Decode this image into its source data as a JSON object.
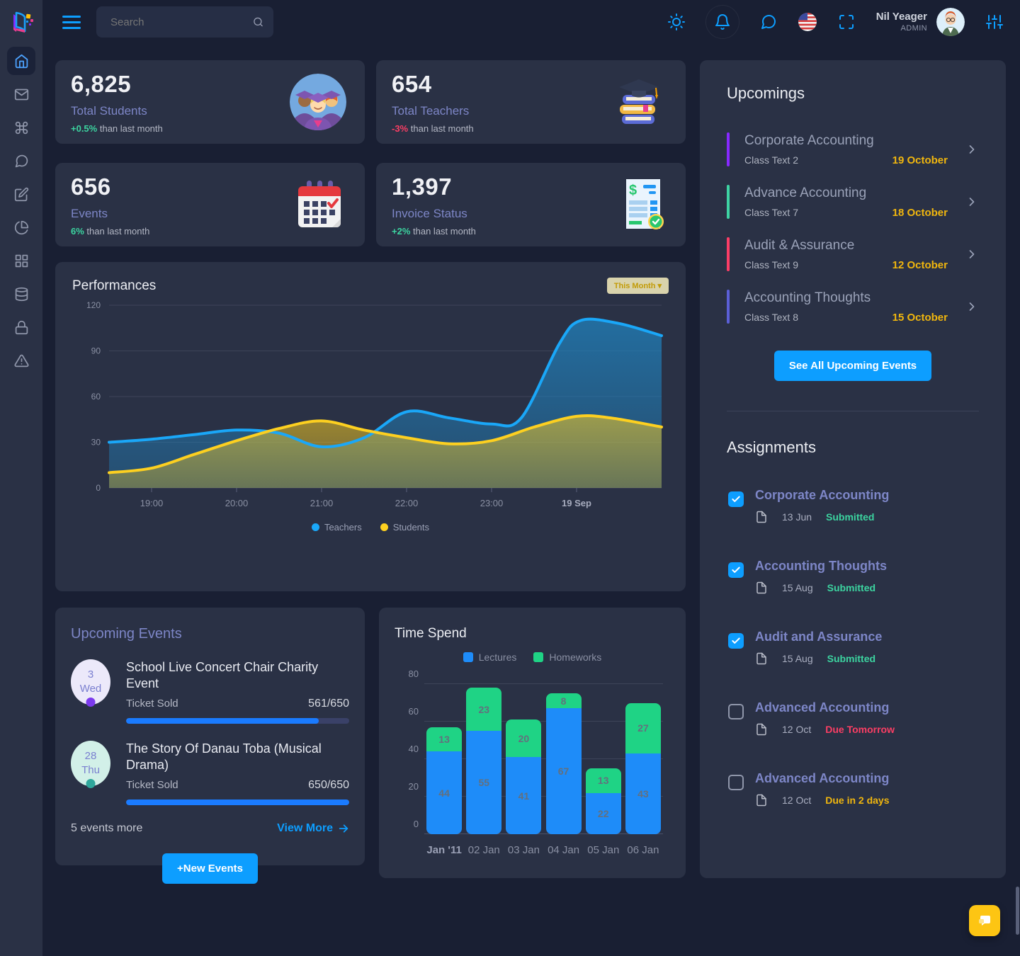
{
  "topbar": {
    "search_placeholder": "Search",
    "user": {
      "name": "Nil Yeager",
      "role": "ADMIN"
    },
    "icons": [
      "sun-icon",
      "bell-icon",
      "chat-icon",
      "us-flag-icon",
      "fullscreen-icon",
      "sliders-icon"
    ]
  },
  "sidebar": {
    "icons": [
      "home",
      "mail",
      "command",
      "chat",
      "edit",
      "pie-chart",
      "grid",
      "database",
      "lock",
      "alert-triangle"
    ],
    "active": "home"
  },
  "stats": [
    {
      "value": "6,825",
      "label": "Total Students",
      "delta": "+0.5%",
      "delta_color": "#3cd4a0",
      "suffix": "than last month",
      "illustration": "graduates"
    },
    {
      "value": "654",
      "label": "Total Teachers",
      "delta": "-3%",
      "delta_color": "#fb3e64",
      "suffix": "than last month",
      "illustration": "books-cap"
    },
    {
      "value": "656",
      "label": "Events",
      "delta": "6%",
      "delta_color": "#3cd4a0",
      "suffix": "than last month",
      "illustration": "calendar"
    },
    {
      "value": "1,397",
      "label": "Invoice Status",
      "delta": "+2%",
      "delta_color": "#3cd4a0",
      "suffix": "than last month",
      "illustration": "invoice-check"
    }
  ],
  "performances": {
    "title": "Performances",
    "filter_label": "This Month"
  },
  "upcomings": {
    "title": "Upcomings",
    "items": [
      {
        "title": "Corporate Accounting",
        "subtitle": "Class Text 2",
        "date": "19 October",
        "accent": "#8729ff"
      },
      {
        "title": "Advance Accounting",
        "subtitle": "Class Text 7",
        "date": "18 October",
        "accent": "#3ed3a3"
      },
      {
        "title": "Audit & Assurance",
        "subtitle": "Class Text 9",
        "date": "12 October",
        "accent": "#fb3d66"
      },
      {
        "title": "Accounting Thoughts",
        "subtitle": "Class Text 8",
        "date": "15 October",
        "accent": "#5b5fd6"
      }
    ],
    "see_all_label": "See All Upcoming Events"
  },
  "assignments": {
    "title": "Assignments",
    "items": [
      {
        "title": "Corporate Accounting",
        "date": "13 Jun",
        "status": "Submitted",
        "status_color": "#3cd4a0",
        "checked": true
      },
      {
        "title": "Accounting Thoughts",
        "date": "15 Aug",
        "status": "Submitted",
        "status_color": "#3cd4a0",
        "checked": true
      },
      {
        "title": "Audit and Assurance",
        "date": "15 Aug",
        "status": "Submitted",
        "status_color": "#3cd4a0",
        "checked": true
      },
      {
        "title": "Advanced Accounting",
        "date": "12 Oct",
        "status": "Due Tomorrow",
        "status_color": "#fb3e64",
        "checked": false
      },
      {
        "title": "Advanced Accounting",
        "date": "12 Oct",
        "status": "Due in 2 days",
        "status_color": "#f0b60e",
        "checked": false
      }
    ]
  },
  "events_panel": {
    "title": "Upcoming Events",
    "events": [
      {
        "day": "3",
        "weekday": "Wed",
        "title": "School Live Concert Chair Charity Event",
        "ticket_label": "Ticket Sold",
        "sold": 561,
        "capacity": 650,
        "sold_display": "561/650",
        "badge_bg": "#ece9fa",
        "badge_color": "#7a7fd0",
        "dot_color": "#7c3aed"
      },
      {
        "day": "28",
        "weekday": "Thu",
        "title": "The Story Of Danau Toba (Musical Drama)",
        "ticket_label": "Ticket Sold",
        "sold": 650,
        "capacity": 650,
        "sold_display": "650/650",
        "badge_bg": "#d2f0e8",
        "badge_color": "#7a7fd0",
        "dot_color": "#2fa79b"
      }
    ],
    "more_label": "5 events more",
    "view_more_label": "View More",
    "new_events_label": "+New Events"
  },
  "chart_data": [
    {
      "type": "area",
      "title": "Performances",
      "x_tick_labels": [
        "19:00",
        "20:00",
        "21:00",
        "22:00",
        "23:00",
        "19 Sep"
      ],
      "x_domain": [
        -0.5,
        6
      ],
      "y_ticks": [
        0,
        30,
        60,
        90,
        120
      ],
      "ylim": [
        0,
        120
      ],
      "grid": true,
      "legend_position": "bottom",
      "series": [
        {
          "name": "Teachers",
          "color": "#1aa7f8",
          "fill_from": "rgba(32,130,190,0.75)",
          "fill_to": "rgba(32,130,190,0.35)",
          "points": [
            [
              -0.5,
              30
            ],
            [
              0,
              32
            ],
            [
              0.5,
              35
            ],
            [
              1,
              38
            ],
            [
              1.5,
              36
            ],
            [
              2,
              27
            ],
            [
              2.5,
              33
            ],
            [
              3,
              50
            ],
            [
              3.5,
              46
            ],
            [
              4,
              42
            ],
            [
              4.35,
              46
            ],
            [
              4.8,
              95
            ],
            [
              5.05,
              110
            ],
            [
              5.5,
              108
            ],
            [
              6,
              100
            ]
          ]
        },
        {
          "name": "Students",
          "color": "#fdd020",
          "fill_from": "rgba(253,208,32,0.55)",
          "fill_to": "rgba(253,208,32,0.30)",
          "points": [
            [
              -0.5,
              10
            ],
            [
              0,
              13
            ],
            [
              0.5,
              22
            ],
            [
              1,
              31
            ],
            [
              1.5,
              39
            ],
            [
              2,
              44
            ],
            [
              2.5,
              38
            ],
            [
              3,
              33
            ],
            [
              3.5,
              29
            ],
            [
              4,
              31
            ],
            [
              4.5,
              40
            ],
            [
              5,
              47
            ],
            [
              5.4,
              46
            ],
            [
              6,
              40
            ]
          ]
        }
      ]
    },
    {
      "type": "stacked-bar",
      "title": "Time Spend",
      "categories": [
        "Jan '11",
        "02 Jan",
        "03 Jan",
        "04 Jan",
        "05 Jan",
        "06 Jan"
      ],
      "y_ticks": [
        0,
        20,
        40,
        60,
        80
      ],
      "ylim": [
        0,
        80
      ],
      "grid": true,
      "legend_position": "top",
      "series": [
        {
          "name": "Lectures",
          "color": "#1e8cf9",
          "values": [
            44,
            55,
            41,
            67,
            22,
            43
          ]
        },
        {
          "name": "Homeworks",
          "color": "#1fd385",
          "values": [
            13,
            23,
            20,
            8,
            13,
            27
          ]
        }
      ]
    }
  ]
}
